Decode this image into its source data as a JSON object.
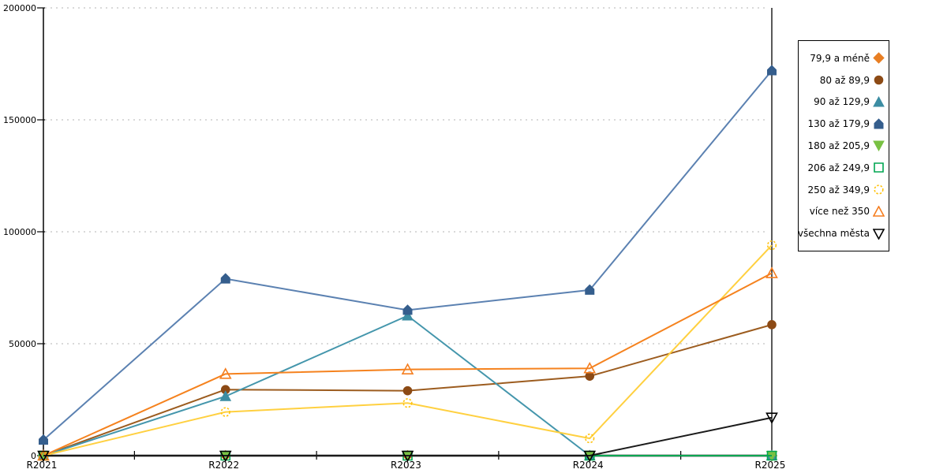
{
  "chart_data": {
    "type": "line",
    "title": "",
    "xlabel": "",
    "ylabel": "",
    "categories": [
      "R2021",
      "R2022",
      "R2023",
      "R2024",
      "R2025"
    ],
    "y_tick_labels": [
      "0",
      "50000",
      "100000",
      "150000",
      "200000"
    ],
    "y_tick_values": [
      0,
      50000,
      100000,
      150000,
      200000
    ],
    "ylim": [
      0,
      200000
    ],
    "grid": "horizontal-dotted",
    "grid_color": "#b3b3b3",
    "axis_color": "#000000",
    "legend_position": "right",
    "legend_border_color": "#000000",
    "series": [
      {
        "name": "79,9 a méně",
        "marker": "diamond",
        "filled": true,
        "marker_color": "#e87e23",
        "line_color": "#e87e23",
        "values": [
          0,
          0,
          0,
          0,
          0
        ]
      },
      {
        "name": "80 až 89,9",
        "marker": "circle",
        "filled": true,
        "marker_color": "#8c4a15",
        "line_color": "#9c5c1f",
        "values": [
          0,
          29500,
          29000,
          35500,
          58500
        ]
      },
      {
        "name": "90 až 129,9",
        "marker": "triangle-up",
        "filled": true,
        "marker_color": "#3c8da3",
        "line_color": "#4496ac",
        "values": [
          0,
          26500,
          62500,
          0,
          0
        ]
      },
      {
        "name": "130 až 179,9",
        "marker": "pentagon",
        "filled": true,
        "marker_color": "#355e8d",
        "line_color": "#5b81b1",
        "values": [
          7000,
          79000,
          65000,
          74000,
          172000
        ]
      },
      {
        "name": "180 až 205,9",
        "marker": "triangle-down",
        "filled": true,
        "marker_color": "#79c143",
        "line_color": "#79c143",
        "values": [
          0,
          0,
          0,
          0,
          0
        ]
      },
      {
        "name": "206 až 249,9",
        "marker": "square",
        "filled": false,
        "marker_color": "#00a651",
        "line_color": "#00a651",
        "values": [
          0,
          0,
          0,
          0,
          0
        ]
      },
      {
        "name": "250 až 349,9",
        "marker": "circle-dashed",
        "filled": false,
        "marker_color": "#ffc20e",
        "line_color": "#ffd040",
        "values": [
          0,
          19500,
          23500,
          7700,
          94000
        ]
      },
      {
        "name": "více než 350",
        "marker": "triangle-up",
        "filled": false,
        "marker_color": "#f57e20",
        "line_color": "#f5821e",
        "values": [
          0,
          36500,
          38500,
          39000,
          81500
        ]
      },
      {
        "name": "všechna města",
        "marker": "triangle-down",
        "filled": false,
        "marker_color": "#000000",
        "line_color": "#1a1a1a",
        "values": [
          0,
          0,
          0,
          0,
          17000
        ]
      }
    ]
  }
}
